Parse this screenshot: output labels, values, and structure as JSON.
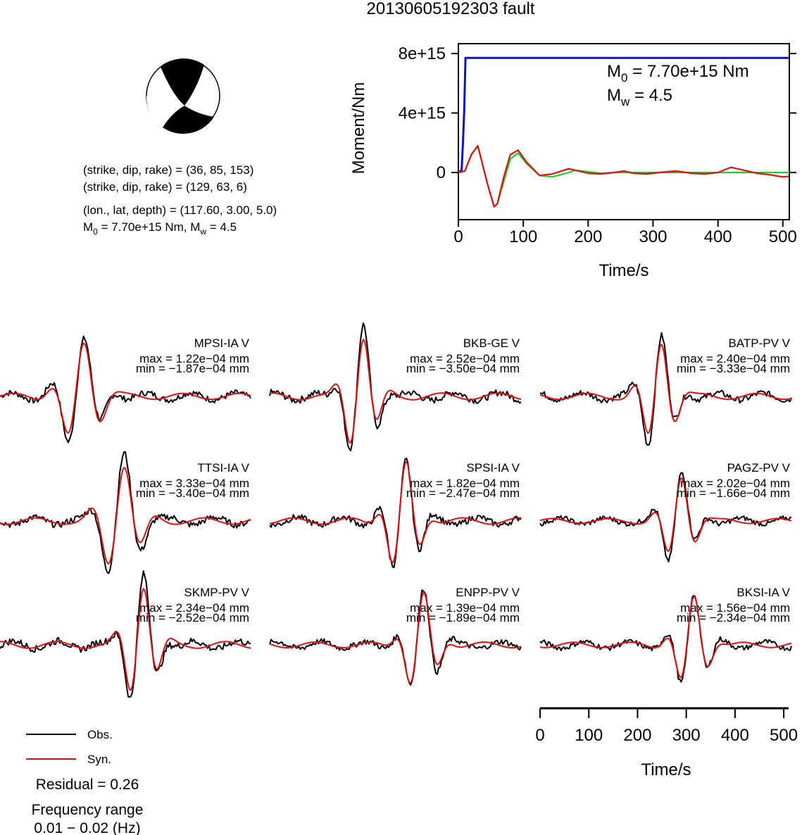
{
  "title": "20130605192303 fault",
  "focal": {
    "line1": "(strike, dip, rake) = (36, 85, 153)",
    "line2": "(strike, dip, rake) = (129, 63, 6)",
    "line3": "(lon., lat, depth) = (117.60, 3.00, 5.0)",
    "m0_label": "M",
    "m0_sub": "0",
    "m0_value": " = 7.70e+15 Nm, M",
    "mw_sub": "w",
    "mw_value": " = 4.5"
  },
  "legend": {
    "obs": "Obs.",
    "syn": "Syn.",
    "residual": "Residual = 0.26",
    "freq_title": "Frequency range",
    "freq_range": "0.01 − 0.02 (Hz)"
  },
  "colors": {
    "obs": "#000000",
    "syn": "#dd1111",
    "moment": "#1111cc",
    "stf_a": "#22cc22",
    "stf_b": "#dd1111"
  },
  "chart_data": [
    {
      "type": "line",
      "title": "",
      "xlabel": "Time/s",
      "ylabel": "Moment/Nm",
      "xlim": [
        0,
        510
      ],
      "ylim": [
        -2500000000000000.0,
        8500000000000000.0
      ],
      "xticks": [
        0,
        100,
        200,
        300,
        400,
        500
      ],
      "yticks": [
        "0",
        "4e+15",
        "8e+15"
      ],
      "ytick_values": [
        0,
        4000000000000000.0,
        8000000000000000.0
      ],
      "annotation": {
        "m0_prefix": "M",
        "m0_sub": "0",
        "m0_text": " = 7.70e+15 Nm",
        "mw_prefix": "M",
        "mw_sub": "w",
        "mw_text": " = 4.5"
      },
      "series": [
        {
          "kind": "cumulative moment",
          "x": [
            0,
            5,
            7,
            9,
            11,
            510
          ],
          "y": [
            0,
            150000000000000.0,
            2000000000000000.0,
            4200000000000000.0,
            7700000000000000.0,
            7700000000000000.0
          ]
        },
        {
          "kind": "source time function",
          "x": [
            0,
            10,
            20,
            30,
            45,
            55,
            60,
            70,
            80,
            92,
            105,
            125,
            145,
            170,
            180,
            200,
            220,
            240,
            260,
            280,
            300,
            320,
            340,
            360,
            380,
            400,
            420,
            440,
            460,
            480,
            500,
            510
          ],
          "y": [
            0,
            100000000000000.0,
            1200000000000000.0,
            1800000000000000.0,
            -800000000000000.0,
            -2300000000000000.0,
            -2100000000000000.0,
            -600000000000000.0,
            900000000000000.0,
            1300000000000000.0,
            600000000000000.0,
            -200000000000000.0,
            -300000000000000.0,
            0.0,
            150000000000000.0,
            50000000000000.0,
            -50000000000000.0,
            0.0,
            0.0,
            0.0,
            0.0,
            0.0,
            0.0,
            0.0,
            0.0,
            0.0,
            0.0,
            0.0,
            0.0,
            0.0,
            0.0,
            0.0
          ]
        },
        {
          "kind": "source time function",
          "x": [
            0,
            10,
            20,
            30,
            45,
            55,
            60,
            70,
            80,
            92,
            105,
            125,
            145,
            170,
            180,
            200,
            220,
            240,
            255,
            270,
            290,
            310,
            335,
            360,
            380,
            400,
            420,
            440,
            460,
            480,
            500,
            510
          ],
          "y": [
            0,
            100000000000000.0,
            1200000000000000.0,
            1800000000000000.0,
            -800000000000000.0,
            -2300000000000000.0,
            -2100000000000000.0,
            -300000000000000.0,
            1200000000000000.0,
            1500000000000000.0,
            700000000000000.0,
            -200000000000000.0,
            -100000000000000.0,
            250000000000000.0,
            150000000000000.0,
            -50000000000000.0,
            -100000000000000.0,
            0.0,
            100000000000000.0,
            -50000000000000.0,
            -100000000000000.0,
            0.0,
            100000000000000.0,
            -50000000000000.0,
            -100000000000000.0,
            0.0,
            350000000000000.0,
            150000000000000.0,
            -50000000000000.0,
            -150000000000000.0,
            -300000000000000.0,
            -250000000000000.0
          ]
        }
      ]
    },
    {
      "type": "line",
      "xlabel": "Time/s",
      "xlim": [
        0,
        510
      ],
      "xticks": [
        0,
        100,
        200,
        300,
        400,
        500
      ],
      "stations": [
        {
          "name": "MPSI-IA V",
          "max": "max = 1.22e−04 mm",
          "min": "min = −1.87e−04 mm"
        },
        {
          "name": "BKB-GE V",
          "max": "max = 2.52e−04 mm",
          "min": "min = −3.50e−04 mm"
        },
        {
          "name": "BATP-PV V",
          "max": "max = 2.40e−04 mm",
          "min": "min = −3.33e−04 mm"
        },
        {
          "name": "TTSI-IA V",
          "max": "max = 3.33e−04 mm",
          "min": "min = −3.40e−04 mm"
        },
        {
          "name": "SPSI-IA V",
          "max": "max = 1.82e−04 mm",
          "min": "min = −2.47e−04 mm"
        },
        {
          "name": "PAGZ-PV V",
          "max": "max = 2.02e−04 mm",
          "min": "min = −1.66e−04 mm"
        },
        {
          "name": "SKMP-PV V",
          "max": "max = 2.34e−04 mm",
          "min": "min = −2.52e−04 mm"
        },
        {
          "name": "ENPP-PV V",
          "max": "max = 1.39e−04 mm",
          "min": "min = −1.89e−04 mm"
        },
        {
          "name": "BKSI-IA V",
          "max": "max = 1.56e−04 mm",
          "min": "min = −2.34e−04 mm"
        }
      ]
    }
  ]
}
